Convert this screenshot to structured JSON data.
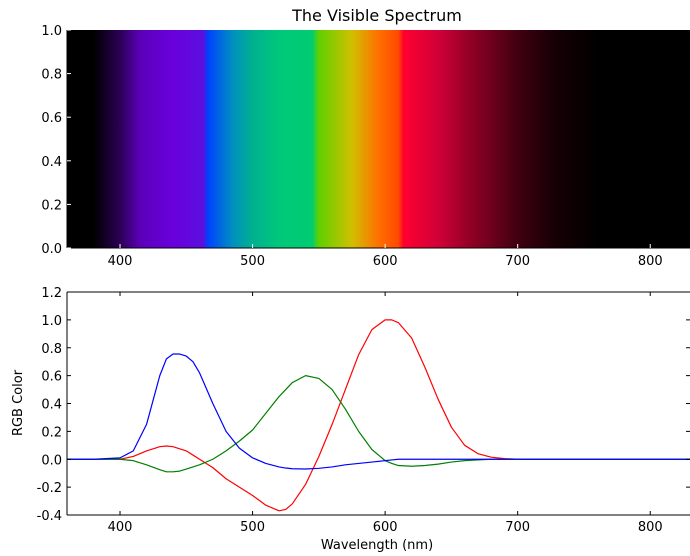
{
  "chart_data": [
    {
      "type": "heatmap",
      "title": "The Visible Spectrum",
      "xlim": [
        360,
        830
      ],
      "ylim": [
        0.0,
        1.0
      ],
      "xticks": [
        400,
        500,
        600,
        700,
        800
      ],
      "yticks": [
        "0.0",
        "0.2",
        "0.4",
        "0.6",
        "0.8",
        "1.0"
      ],
      "spectrum_colors": [
        {
          "x": 360,
          "color": "#000000"
        },
        {
          "x": 380,
          "color": "#000000"
        },
        {
          "x": 400,
          "color": "#2b0055"
        },
        {
          "x": 415,
          "color": "#5a00b8"
        },
        {
          "x": 440,
          "color": "#6a00dd"
        },
        {
          "x": 463,
          "color": "#5a10dd"
        },
        {
          "x": 466,
          "color": "#0040ff"
        },
        {
          "x": 485,
          "color": "#0090c0"
        },
        {
          "x": 500,
          "color": "#00b090"
        },
        {
          "x": 520,
          "color": "#00c87a"
        },
        {
          "x": 545,
          "color": "#00cc70"
        },
        {
          "x": 550,
          "color": "#60d000"
        },
        {
          "x": 575,
          "color": "#d0c000"
        },
        {
          "x": 595,
          "color": "#ff7000"
        },
        {
          "x": 610,
          "color": "#ff4a00"
        },
        {
          "x": 614,
          "color": "#ff0030"
        },
        {
          "x": 640,
          "color": "#d00038"
        },
        {
          "x": 665,
          "color": "#900025"
        },
        {
          "x": 700,
          "color": "#400010"
        },
        {
          "x": 730,
          "color": "#140004"
        },
        {
          "x": 760,
          "color": "#000000"
        },
        {
          "x": 830,
          "color": "#000000"
        }
      ]
    },
    {
      "type": "line",
      "xlabel": "Wavelength (nm)",
      "ylabel": "RGB Color",
      "xlim": [
        360,
        830
      ],
      "ylim": [
        -0.4,
        1.2
      ],
      "xticks": [
        400,
        500,
        600,
        700,
        800
      ],
      "yticks": [
        "-0.4",
        "-0.2",
        "0.0",
        "0.2",
        "0.4",
        "0.6",
        "0.8",
        "1.0",
        "1.2"
      ],
      "x": [
        360,
        380,
        400,
        410,
        420,
        430,
        435,
        440,
        445,
        450,
        455,
        460,
        470,
        480,
        490,
        500,
        510,
        520,
        525,
        530,
        540,
        550,
        560,
        570,
        580,
        590,
        600,
        605,
        610,
        620,
        630,
        640,
        650,
        660,
        670,
        680,
        690,
        700,
        720,
        750,
        800,
        830
      ],
      "series": [
        {
          "color": "#ff0000",
          "values": [
            0.0,
            0.0,
            0.0,
            0.02,
            0.06,
            0.09,
            0.095,
            0.09,
            0.075,
            0.06,
            0.03,
            0.0,
            -0.06,
            -0.14,
            -0.2,
            -0.26,
            -0.33,
            -0.37,
            -0.36,
            -0.32,
            -0.18,
            0.02,
            0.25,
            0.5,
            0.75,
            0.93,
            1.0,
            1.0,
            0.98,
            0.87,
            0.66,
            0.43,
            0.23,
            0.1,
            0.04,
            0.015,
            0.005,
            0.0,
            0.0,
            0.0,
            0.0,
            0.0
          ]
        },
        {
          "color": "#008000",
          "values": [
            0.0,
            0.0,
            0.0,
            -0.01,
            -0.04,
            -0.075,
            -0.09,
            -0.09,
            -0.085,
            -0.07,
            -0.055,
            -0.04,
            0.0,
            0.06,
            0.13,
            0.21,
            0.33,
            0.45,
            0.5,
            0.55,
            0.6,
            0.58,
            0.5,
            0.36,
            0.2,
            0.07,
            -0.01,
            -0.03,
            -0.045,
            -0.05,
            -0.045,
            -0.035,
            -0.02,
            -0.01,
            -0.005,
            0.0,
            0.0,
            0.0,
            0.0,
            0.0,
            0.0,
            0.0
          ]
        },
        {
          "color": "#0000ff",
          "values": [
            0.0,
            0.0,
            0.01,
            0.06,
            0.25,
            0.6,
            0.72,
            0.755,
            0.755,
            0.74,
            0.7,
            0.62,
            0.4,
            0.2,
            0.08,
            0.01,
            -0.03,
            -0.055,
            -0.063,
            -0.068,
            -0.07,
            -0.065,
            -0.055,
            -0.04,
            -0.03,
            -0.02,
            -0.01,
            -0.005,
            0.0,
            0.0,
            0.0,
            0.0,
            0.0,
            0.0,
            0.0,
            0.0,
            0.0,
            0.0,
            0.0,
            0.0,
            0.0,
            0.0
          ]
        }
      ]
    }
  ]
}
